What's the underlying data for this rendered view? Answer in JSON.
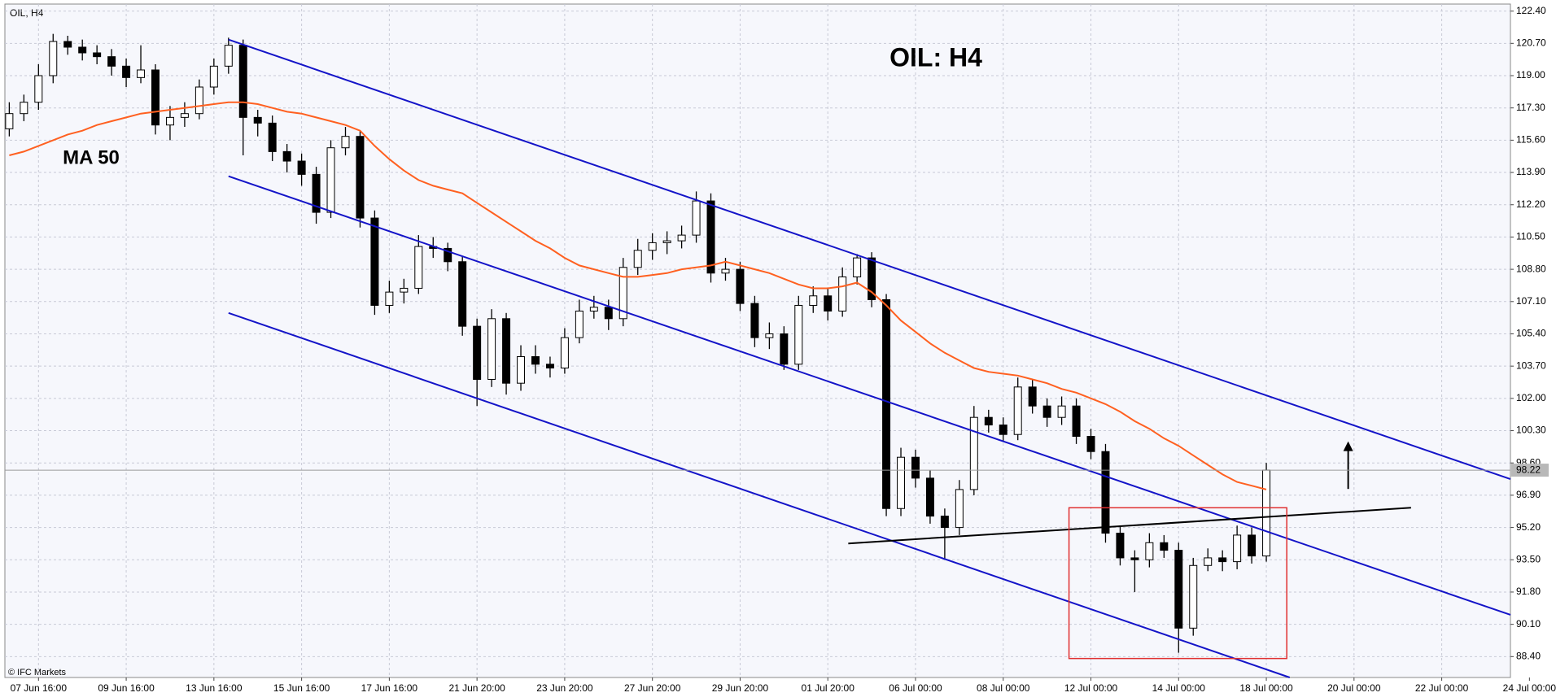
{
  "chart_data": {
    "type": "candlestick",
    "title": "OIL: H4",
    "symbol": "OIL, H4",
    "ma_label": "MA 50",
    "copyright": "© IFC Markets",
    "categories": [
      null,
      null,
      "07 Jun 16:00",
      null,
      null,
      null,
      null,
      null,
      "09 Jun 16:00",
      null,
      null,
      null,
      null,
      null,
      "13 Jun 16:00",
      null,
      null,
      null,
      null,
      null,
      "15 Jun 16:00",
      null,
      null,
      null,
      null,
      null,
      "17 Jun 16:00",
      null,
      null,
      null,
      null,
      null,
      "21 Jun 20:00",
      null,
      null,
      null,
      null,
      null,
      "23 Jun 20:00",
      null,
      null,
      null,
      null,
      null,
      "27 Jun 20:00",
      null,
      null,
      null,
      null,
      null,
      "29 Jun 20:00",
      null,
      null,
      null,
      null,
      null,
      "01 Jul 20:00",
      null,
      null,
      null,
      null,
      null,
      "06 Jul 00:00",
      null,
      null,
      null,
      null,
      null,
      "08 Jul 00:00",
      null,
      null,
      null,
      null,
      null,
      "12 Jul 00:00",
      null,
      null,
      null,
      null,
      null,
      "14 Jul 00:00",
      null,
      null,
      null,
      null,
      null,
      "18 Jul 00:00",
      null,
      null,
      null,
      null,
      null,
      "20 Jul 00:00",
      null,
      null,
      null,
      null,
      null,
      "22 Jul 00:00",
      null,
      null,
      null,
      null,
      null,
      "24 Jul 00:00"
    ],
    "open": [
      116.2,
      117.0,
      117.6,
      119.0,
      120.8,
      120.5,
      120.2,
      120.0,
      119.5,
      118.9,
      119.3,
      116.4,
      116.8,
      117.0,
      118.4,
      119.5,
      120.6,
      116.8,
      116.5,
      115.0,
      114.5,
      113.8,
      111.8,
      115.2,
      115.8,
      111.5,
      106.9,
      107.6,
      107.8,
      110.0,
      109.9,
      109.2,
      105.8,
      103.0,
      106.2,
      102.8,
      104.2,
      103.8,
      103.6,
      105.2,
      106.6,
      106.8,
      106.2,
      108.9,
      109.8,
      110.2,
      110.3,
      110.6,
      112.4,
      108.6,
      108.8,
      107.0,
      105.2,
      105.4,
      103.8,
      106.9,
      107.4,
      106.6,
      108.4,
      109.4,
      107.2,
      96.2,
      98.9,
      97.8,
      95.8,
      95.2,
      97.2,
      101.0,
      100.6,
      100.1,
      102.6,
      101.6,
      101.0,
      101.6,
      100.0,
      99.2,
      94.9,
      93.6,
      93.5,
      94.4,
      94.0,
      89.9,
      93.2,
      93.6,
      93.4,
      94.8,
      93.7,
      null,
      null,
      null,
      null,
      null,
      null,
      null,
      null,
      null,
      null,
      null,
      null,
      null,
      null,
      null,
      null,
      null,
      null
    ],
    "high": [
      117.6,
      118.0,
      119.6,
      121.2,
      121.1,
      120.9,
      120.6,
      120.4,
      119.9,
      120.6,
      119.6,
      117.4,
      117.6,
      118.8,
      119.9,
      121.0,
      120.9,
      117.2,
      116.9,
      115.4,
      114.9,
      114.2,
      115.6,
      116.3,
      116.1,
      111.9,
      108.2,
      108.3,
      110.6,
      110.5,
      110.2,
      109.5,
      106.2,
      106.7,
      106.5,
      104.8,
      104.8,
      104.2,
      105.7,
      107.2,
      107.4,
      107.2,
      109.4,
      110.4,
      110.7,
      110.8,
      111.1,
      112.9,
      112.8,
      109.4,
      109.2,
      107.4,
      106.0,
      105.8,
      107.4,
      107.9,
      107.8,
      108.9,
      109.6,
      109.7,
      107.5,
      99.4,
      99.3,
      98.2,
      96.2,
      97.7,
      101.6,
      101.4,
      101.0,
      103.1,
      103.0,
      102.0,
      102.1,
      102.0,
      100.4,
      99.6,
      95.3,
      94.0,
      94.9,
      94.8,
      94.4,
      93.6,
      94.1,
      94.0,
      95.3,
      95.2,
      98.6,
      null,
      null,
      null,
      null,
      null,
      null,
      null,
      null,
      null,
      null,
      null,
      null,
      null,
      null,
      null,
      null,
      null,
      null
    ],
    "low": [
      115.8,
      116.6,
      117.2,
      118.6,
      120.1,
      119.8,
      119.6,
      119.0,
      118.4,
      118.6,
      115.9,
      115.6,
      116.3,
      116.7,
      118.0,
      119.1,
      114.8,
      115.8,
      114.5,
      113.9,
      113.2,
      111.2,
      111.5,
      114.8,
      111.0,
      106.4,
      106.5,
      107.0,
      107.5,
      109.4,
      108.7,
      105.3,
      101.6,
      102.6,
      102.2,
      102.4,
      103.3,
      103.1,
      103.3,
      104.9,
      106.2,
      105.6,
      105.8,
      108.5,
      109.3,
      109.6,
      109.9,
      110.2,
      108.1,
      108.2,
      106.6,
      104.7,
      104.6,
      103.5,
      103.5,
      106.5,
      106.1,
      106.3,
      108.0,
      106.8,
      95.8,
      95.8,
      97.3,
      95.4,
      93.5,
      94.8,
      96.9,
      100.2,
      99.7,
      99.8,
      101.2,
      100.5,
      100.6,
      99.6,
      98.8,
      94.4,
      93.2,
      91.8,
      93.1,
      93.6,
      88.6,
      89.5,
      92.9,
      92.9,
      93.0,
      93.3,
      93.4,
      null,
      null,
      null,
      null,
      null,
      null,
      null,
      null,
      null,
      null,
      null,
      null,
      null,
      null,
      null,
      null,
      null,
      null
    ],
    "close": [
      117.0,
      117.6,
      119.0,
      120.8,
      120.5,
      120.2,
      120.0,
      119.5,
      118.9,
      119.3,
      116.4,
      116.8,
      117.0,
      118.4,
      119.5,
      120.6,
      116.8,
      116.5,
      115.0,
      114.5,
      113.8,
      111.8,
      115.2,
      115.8,
      111.5,
      106.9,
      107.6,
      107.8,
      110.0,
      109.9,
      109.2,
      105.8,
      103.0,
      106.2,
      102.8,
      104.2,
      103.8,
      103.6,
      105.2,
      106.6,
      106.8,
      106.2,
      108.9,
      109.8,
      110.2,
      110.3,
      110.6,
      112.4,
      108.6,
      108.8,
      107.0,
      105.2,
      105.4,
      103.8,
      106.9,
      107.4,
      106.6,
      108.4,
      109.4,
      107.2,
      96.2,
      98.9,
      97.8,
      95.8,
      95.2,
      97.2,
      101.0,
      100.6,
      100.1,
      102.6,
      101.6,
      101.0,
      101.6,
      100.0,
      99.2,
      94.9,
      93.6,
      93.5,
      94.4,
      94.0,
      89.9,
      93.2,
      93.6,
      93.4,
      94.8,
      93.7,
      98.22,
      null,
      null,
      null,
      null,
      null,
      null,
      null,
      null,
      null,
      null,
      null,
      null,
      null,
      null,
      null,
      null,
      null,
      null
    ],
    "ma": {
      "color": "#ff6020",
      "values": [
        114.8,
        115.0,
        115.3,
        115.6,
        115.9,
        116.1,
        116.4,
        116.6,
        116.8,
        117.0,
        117.1,
        117.2,
        117.3,
        117.4,
        117.5,
        117.6,
        117.6,
        117.5,
        117.3,
        117.1,
        117.0,
        116.8,
        116.6,
        116.4,
        116.1,
        115.3,
        114.6,
        114.0,
        113.5,
        113.2,
        113.0,
        112.8,
        112.3,
        111.8,
        111.3,
        110.8,
        110.3,
        109.9,
        109.4,
        109.0,
        108.8,
        108.6,
        108.4,
        108.4,
        108.5,
        108.6,
        108.8,
        108.9,
        109.0,
        109.2,
        109.0,
        108.8,
        108.6,
        108.3,
        108.0,
        107.8,
        107.8,
        107.9,
        108.1,
        107.6,
        106.9,
        106.1,
        105.5,
        104.9,
        104.4,
        104.0,
        103.6,
        103.4,
        103.3,
        103.2,
        103.0,
        102.8,
        102.5,
        102.3,
        102.0,
        101.7,
        101.3,
        100.8,
        100.4,
        99.9,
        99.5,
        99.0,
        98.5,
        98.0,
        97.6,
        97.4,
        97.2,
        null,
        null,
        null,
        null,
        null,
        null,
        null,
        null,
        null,
        null,
        null,
        null,
        null,
        null,
        null,
        null,
        null,
        null
      ]
    },
    "lines": [
      {
        "x": [
          15,
          102.7
        ],
        "y": [
          120.9,
          97.75
        ],
        "color": "#1414c8"
      },
      {
        "x": [
          15,
          102.7
        ],
        "y": [
          113.7,
          90.6
        ],
        "color": "#1414c8"
      },
      {
        "x": [
          15,
          87.6
        ],
        "y": [
          106.5,
          87.3
        ],
        "color": "#1414c8"
      },
      {
        "x": [
          57.4,
          95.9
        ],
        "y": [
          94.36,
          96.24
        ],
        "color": "#000000"
      }
    ],
    "box": {
      "x": [
        72.5,
        87.4
      ],
      "y": [
        96.24,
        88.3
      ],
      "color": "#e03030"
    },
    "arrow": {
      "x": 91.6,
      "y": [
        97.23,
        99.74
      ],
      "color": "#000000"
    },
    "xlim": [
      -0.3,
      102.7
    ],
    "ylim": [
      87.3,
      122.77
    ],
    "yticks": [
      {
        "value": 122.4,
        "label": "122.40"
      },
      {
        "value": 120.7,
        "label": "120.70"
      },
      {
        "value": 119,
        "label": "119.00"
      },
      {
        "value": 117.3,
        "label": "117.30"
      },
      {
        "value": 115.6,
        "label": "115.60"
      },
      {
        "value": 113.9,
        "label": "113.90"
      },
      {
        "value": 112.2,
        "label": "112.20"
      },
      {
        "value": 110.5,
        "label": "110.50"
      },
      {
        "value": 108.8,
        "label": "108.80"
      },
      {
        "value": 107.1,
        "label": "107.10"
      },
      {
        "value": 105.4,
        "label": "105.40"
      },
      {
        "value": 103.7,
        "label": "103.70"
      },
      {
        "value": 102,
        "label": "102.00"
      },
      {
        "value": 100.3,
        "label": "100.30"
      },
      {
        "value": 98.6,
        "label": "98.60"
      },
      {
        "value": 96.9,
        "label": "96.90"
      },
      {
        "value": 95.2,
        "label": "95.20"
      },
      {
        "value": 93.5,
        "label": "93.50"
      },
      {
        "value": 91.8,
        "label": "91.80"
      },
      {
        "value": 90.1,
        "label": "90.10"
      },
      {
        "value": 88.4,
        "label": "88.40"
      }
    ],
    "grid": true
  }
}
